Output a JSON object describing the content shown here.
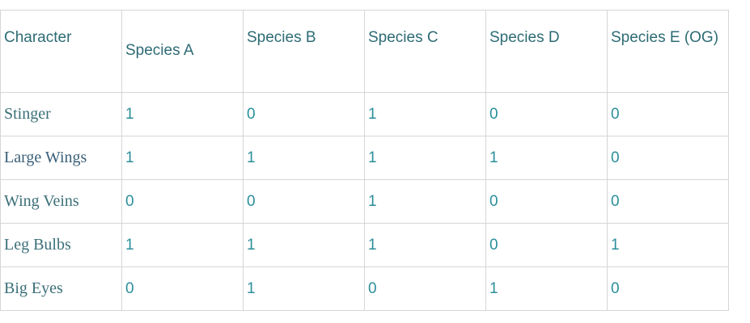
{
  "table": {
    "headers": [
      "Character",
      "Species A",
      "Species B",
      "Species C",
      "Species D",
      "Species E (OG)"
    ],
    "rows": [
      {
        "character": "Stinger",
        "values": [
          "1",
          "0",
          "1",
          "0",
          "0"
        ]
      },
      {
        "character": "Large Wings",
        "values": [
          "1",
          "1",
          "1",
          "1",
          "0"
        ]
      },
      {
        "character": "Wing Veins",
        "values": [
          "0",
          "0",
          "1",
          "0",
          "0"
        ]
      },
      {
        "character": "Leg Bulbs",
        "values": [
          "1",
          "1",
          "1",
          "0",
          "1"
        ]
      },
      {
        "character": "Big Eyes",
        "values": [
          "0",
          "1",
          "0",
          "1",
          "0"
        ]
      }
    ]
  },
  "colors": {
    "header_text": "#2d6b74",
    "value_text": "#2b8f9a",
    "border": "#d6d6d6"
  }
}
